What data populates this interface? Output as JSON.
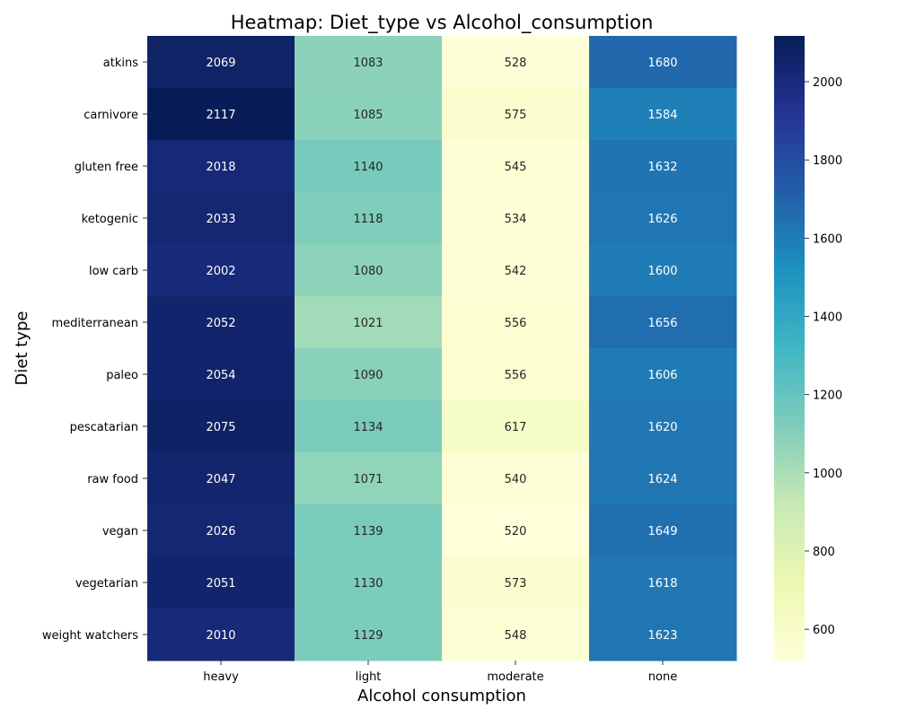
{
  "chart_data": {
    "type": "heatmap",
    "title": "Heatmap: Diet_type vs Alcohol_consumption",
    "xlabel": "Alcohol consumption",
    "ylabel": "Diet type",
    "x_categories": [
      "heavy",
      "light",
      "moderate",
      "none"
    ],
    "y_categories": [
      "atkins",
      "carnivore",
      "gluten free",
      "ketogenic",
      "low carb",
      "mediterranean",
      "paleo",
      "pescatarian",
      "raw food",
      "vegan",
      "vegetarian",
      "weight watchers"
    ],
    "values": [
      [
        2069,
        1083,
        528,
        1680
      ],
      [
        2117,
        1085,
        575,
        1584
      ],
      [
        2018,
        1140,
        545,
        1632
      ],
      [
        2033,
        1118,
        534,
        1626
      ],
      [
        2002,
        1080,
        542,
        1600
      ],
      [
        2052,
        1021,
        556,
        1656
      ],
      [
        2054,
        1090,
        556,
        1606
      ],
      [
        2075,
        1134,
        617,
        1620
      ],
      [
        2047,
        1071,
        540,
        1624
      ],
      [
        2026,
        1139,
        520,
        1649
      ],
      [
        2051,
        1130,
        573,
        1618
      ],
      [
        2010,
        1129,
        548,
        1623
      ]
    ],
    "colormap": "YlGnBu",
    "colorbar": {
      "range": [
        520,
        2117
      ],
      "ticks": [
        600,
        800,
        1000,
        1200,
        1400,
        1600,
        1800,
        2000
      ]
    }
  }
}
